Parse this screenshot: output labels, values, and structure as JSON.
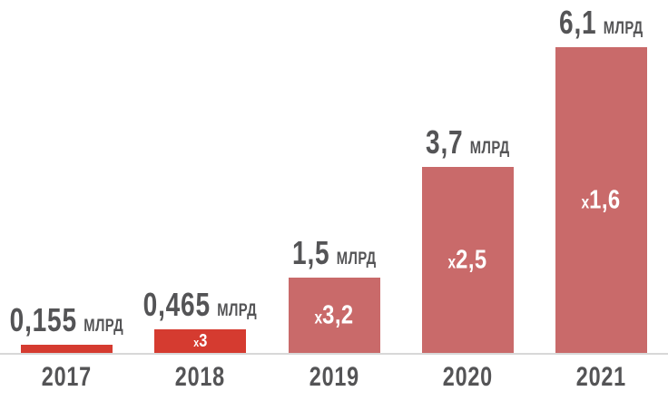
{
  "chart_data": {
    "type": "bar",
    "title": "",
    "xlabel": "",
    "ylabel": "",
    "categories": [
      "2017",
      "2018",
      "2019",
      "2020",
      "2021"
    ],
    "values": [
      0.155,
      0.465,
      1.5,
      3.7,
      6.1
    ],
    "value_labels": [
      "0,155",
      "0,465",
      "1,5",
      "3,7",
      "6,1"
    ],
    "unit_label": "МЛРД",
    "growth": [
      {
        "prefix": "",
        "value": ""
      },
      {
        "prefix": "х",
        "value": "3"
      },
      {
        "prefix": "х",
        "value": "3,2"
      },
      {
        "prefix": "х",
        "value": "2,5"
      },
      {
        "prefix": "х",
        "value": "1,6"
      }
    ],
    "bar_colors": [
      "#d53b30",
      "#d53b30",
      "#c96a6a",
      "#c96a6a",
      "#c96a6a"
    ],
    "label_color": "#545456",
    "growth_text_color": "#ffffff",
    "axis_line_color": "#d8d8d8",
    "background_color": "#ffffff",
    "ylim": [
      0,
      7
    ],
    "grid": false,
    "legend": false
  }
}
